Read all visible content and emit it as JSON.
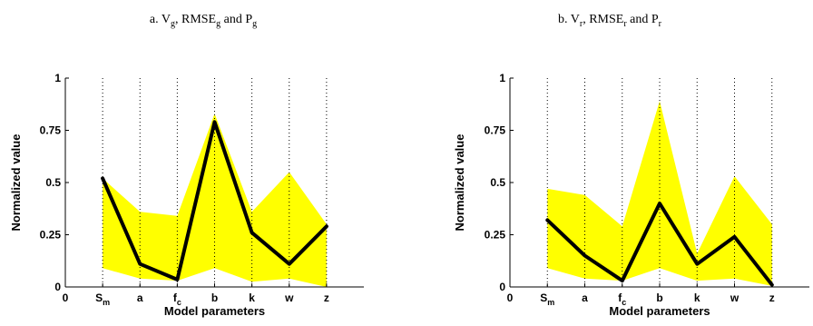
{
  "chart_data": [
    {
      "type": "line",
      "title_parts": {
        "prefix": "a. ",
        "v": "V",
        "v_sub": "g",
        "rmse": ", RMSE",
        "rmse_sub": "g",
        "and": " and P",
        "p_sub": "g"
      },
      "xlabel": "Model parameters",
      "ylabel": "Normalized value",
      "x_origin_label": "0",
      "categories": [
        {
          "main": "S",
          "sub": "m"
        },
        {
          "main": "a",
          "sub": ""
        },
        {
          "main": "f",
          "sub": "c"
        },
        {
          "main": "b",
          "sub": ""
        },
        {
          "main": "k",
          "sub": ""
        },
        {
          "main": "w",
          "sub": ""
        },
        {
          "main": "z",
          "sub": ""
        }
      ],
      "yticks": [
        "0",
        "0.25",
        "0.5",
        "0.75",
        "1"
      ],
      "ylim": [
        0,
        1
      ],
      "xlim": [
        0,
        8
      ],
      "grid": "vertical dotted lines at each category",
      "colors": {
        "band": "#ffff00",
        "line": "#000000"
      },
      "series": [
        {
          "values": [
            0.52,
            0.11,
            0.035,
            0.79,
            0.26,
            0.11,
            0.29
          ]
        }
      ],
      "band_upper": [
        0.52,
        0.36,
        0.34,
        0.83,
        0.36,
        0.55,
        0.3
      ],
      "band_lower": [
        0.09,
        0.04,
        0.03,
        0.09,
        0.025,
        0.04,
        0.0
      ]
    },
    {
      "type": "line",
      "title_parts": {
        "prefix": "b. ",
        "v": "V",
        "v_sub": "r",
        "rmse": ", RMSE",
        "rmse_sub": "r",
        "and": " and P",
        "p_sub": "r"
      },
      "xlabel": "Model parameters",
      "ylabel": "Normalized value",
      "x_origin_label": "0",
      "categories": [
        {
          "main": "S",
          "sub": "m"
        },
        {
          "main": "a",
          "sub": ""
        },
        {
          "main": "f",
          "sub": "c"
        },
        {
          "main": "b",
          "sub": ""
        },
        {
          "main": "k",
          "sub": ""
        },
        {
          "main": "w",
          "sub": ""
        },
        {
          "main": "z",
          "sub": ""
        }
      ],
      "yticks": [
        "0",
        "0.25",
        "0.5",
        "0.75",
        "1"
      ],
      "ylim": [
        0,
        1
      ],
      "xlim": [
        0,
        8
      ],
      "grid": "vertical dotted lines at each category",
      "colors": {
        "band": "#ffff00",
        "line": "#000000"
      },
      "series": [
        {
          "values": [
            0.32,
            0.15,
            0.03,
            0.4,
            0.11,
            0.24,
            0.01
          ]
        }
      ],
      "band_upper": [
        0.47,
        0.44,
        0.29,
        0.89,
        0.16,
        0.53,
        0.3
      ],
      "band_lower": [
        0.09,
        0.04,
        0.03,
        0.09,
        0.03,
        0.04,
        0.005
      ]
    }
  ]
}
